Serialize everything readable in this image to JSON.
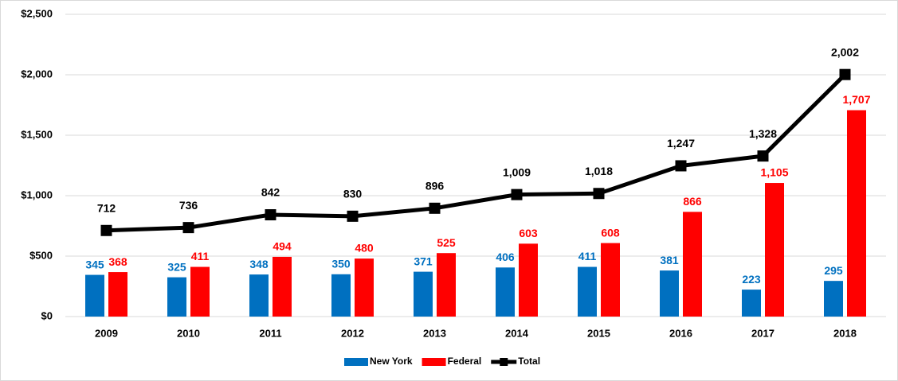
{
  "chart_data": {
    "type": "bar_line",
    "categories": [
      "2009",
      "2010",
      "2011",
      "2012",
      "2013",
      "2014",
      "2015",
      "2016",
      "2017",
      "2018"
    ],
    "series": [
      {
        "name": "New York",
        "color": "#0070c0",
        "type": "bar",
        "values": [
          345,
          325,
          348,
          350,
          371,
          406,
          411,
          381,
          223,
          295
        ]
      },
      {
        "name": "Federal",
        "color": "#ff0000",
        "type": "bar",
        "values": [
          368,
          411,
          494,
          480,
          525,
          603,
          608,
          866,
          1105,
          1707
        ],
        "value_labels": [
          "368",
          "411",
          "494",
          "480",
          "525",
          "603",
          "608",
          "866",
          "1,105",
          "1,707"
        ]
      },
      {
        "name": "Total",
        "color": "#000000",
        "type": "line",
        "values": [
          712,
          736,
          842,
          830,
          896,
          1009,
          1018,
          1247,
          1328,
          2002
        ],
        "value_labels": [
          "712",
          "736",
          "842",
          "830",
          "896",
          "1,009",
          "1,018",
          "1,247",
          "1,328",
          "2,002"
        ]
      }
    ],
    "ylim": [
      0,
      2500
    ],
    "yticks": [
      {
        "value": 0,
        "label": "$0"
      },
      {
        "value": 500,
        "label": "$500"
      },
      {
        "value": 1000,
        "label": "$1,000"
      },
      {
        "value": 1500,
        "label": "$1,500"
      },
      {
        "value": 2000,
        "label": "$2,000"
      },
      {
        "value": 2500,
        "label": "$2,500"
      }
    ],
    "grid": true,
    "legend": "bottom"
  }
}
